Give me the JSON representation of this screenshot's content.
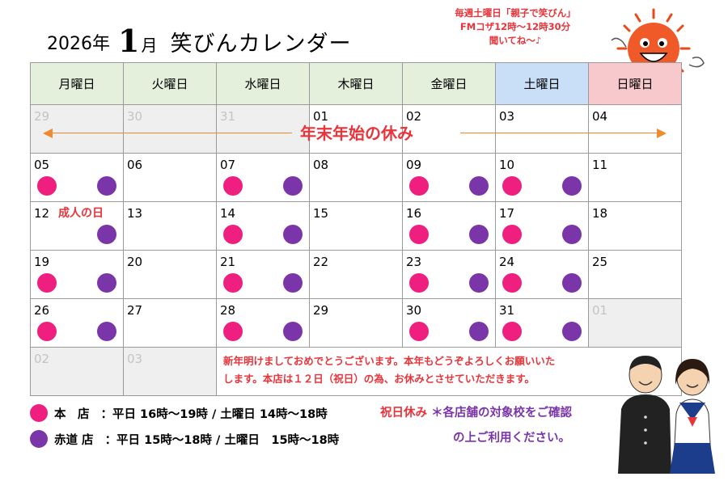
{
  "header": {
    "year": "2026年",
    "month": "1",
    "month_unit": "月",
    "title": "笑びんカレンダー"
  },
  "notice": {
    "line1": "毎週土曜日「親子で笑びん」",
    "line2": "FMコザ12時～12時30分",
    "line3": "聞いてね～♪"
  },
  "weekdays": [
    "月曜日",
    "火曜日",
    "水曜日",
    "木曜日",
    "金曜日",
    "土曜日",
    "日曜日"
  ],
  "holiday_banner": "年末年始の休み",
  "holiday_label": "成人の日",
  "weeks": [
    [
      {
        "day": "29",
        "gray": true,
        "honten": false,
        "akamichi": false
      },
      {
        "day": "30",
        "gray": true,
        "honten": false,
        "akamichi": false
      },
      {
        "day": "31",
        "gray": true,
        "honten": false,
        "akamichi": false
      },
      {
        "day": "01",
        "gray": false,
        "honten": false,
        "akamichi": false
      },
      {
        "day": "02",
        "gray": false,
        "honten": false,
        "akamichi": false
      },
      {
        "day": "03",
        "gray": false,
        "honten": false,
        "akamichi": false
      },
      {
        "day": "04",
        "gray": false,
        "honten": false,
        "akamichi": false
      }
    ],
    [
      {
        "day": "05",
        "gray": false,
        "honten": true,
        "akamichi": true
      },
      {
        "day": "06",
        "gray": false,
        "honten": false,
        "akamichi": false
      },
      {
        "day": "07",
        "gray": false,
        "honten": true,
        "akamichi": true
      },
      {
        "day": "08",
        "gray": false,
        "honten": false,
        "akamichi": false
      },
      {
        "day": "09",
        "gray": false,
        "honten": true,
        "akamichi": true
      },
      {
        "day": "10",
        "gray": false,
        "honten": true,
        "akamichi": true
      },
      {
        "day": "11",
        "gray": false,
        "honten": false,
        "akamichi": false
      }
    ],
    [
      {
        "day": "12",
        "gray": false,
        "honten": false,
        "akamichi": true,
        "holiday": true
      },
      {
        "day": "13",
        "gray": false,
        "honten": false,
        "akamichi": false
      },
      {
        "day": "14",
        "gray": false,
        "honten": true,
        "akamichi": true
      },
      {
        "day": "15",
        "gray": false,
        "honten": false,
        "akamichi": false
      },
      {
        "day": "16",
        "gray": false,
        "honten": true,
        "akamichi": true
      },
      {
        "day": "17",
        "gray": false,
        "honten": true,
        "akamichi": true
      },
      {
        "day": "18",
        "gray": false,
        "honten": false,
        "akamichi": false
      }
    ],
    [
      {
        "day": "19",
        "gray": false,
        "honten": true,
        "akamichi": true
      },
      {
        "day": "20",
        "gray": false,
        "honten": false,
        "akamichi": false
      },
      {
        "day": "21",
        "gray": false,
        "honten": true,
        "akamichi": true
      },
      {
        "day": "22",
        "gray": false,
        "honten": false,
        "akamichi": false
      },
      {
        "day": "23",
        "gray": false,
        "honten": true,
        "akamichi": true
      },
      {
        "day": "24",
        "gray": false,
        "honten": true,
        "akamichi": true
      },
      {
        "day": "25",
        "gray": false,
        "honten": false,
        "akamichi": false
      }
    ],
    [
      {
        "day": "26",
        "gray": false,
        "honten": true,
        "akamichi": true
      },
      {
        "day": "27",
        "gray": false,
        "honten": false,
        "akamichi": false
      },
      {
        "day": "28",
        "gray": false,
        "honten": true,
        "akamichi": true
      },
      {
        "day": "29",
        "gray": false,
        "honten": false,
        "akamichi": false
      },
      {
        "day": "30",
        "gray": false,
        "honten": true,
        "akamichi": true
      },
      {
        "day": "31",
        "gray": false,
        "honten": true,
        "akamichi": true
      },
      {
        "day": "01",
        "gray": true,
        "honten": false,
        "akamichi": false
      }
    ]
  ],
  "last_row": {
    "days": [
      "02",
      "03"
    ],
    "message_line1": "新年明けましておめでとうございます。本年もどうぞよろしくお願いいた",
    "message_line2": "します。本店は１２日（祝日）の為、お休みとさせていただきます。"
  },
  "legend": {
    "honten": {
      "name": "本　店",
      "hours": "：平日 16時～19時 / 土曜日 14時～18時"
    },
    "akamichi": {
      "name": "赤道 店",
      "hours": "：平日 15時～18時 / 土曜日　15時～18時"
    }
  },
  "closed_note": {
    "holiday_closed": "祝日休み",
    "confirm_1": "＊各店舗の対象校をご確認",
    "confirm_2": "の上ご利用ください。"
  },
  "colors": {
    "honten": "#ee1f7e",
    "akamichi": "#7a35a8",
    "accent_red": "#e8343a",
    "header_green": "#e4f0dc",
    "header_blue": "#c9dff8",
    "header_pink": "#f8c9cc",
    "arrow_orange": "#ef8a2e"
  },
  "icons": [
    "sun-mascot-icon",
    "student-boy-icon",
    "student-girl-icon"
  ]
}
